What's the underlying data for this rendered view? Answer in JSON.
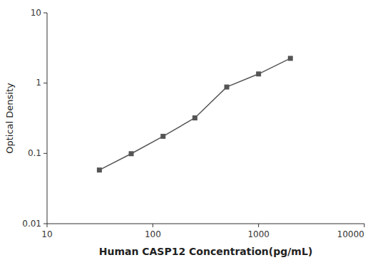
{
  "chart_data": {
    "type": "line",
    "x": [
      31.25,
      62.5,
      125,
      250,
      500,
      1000,
      2000
    ],
    "values": [
      0.058,
      0.099,
      0.175,
      0.32,
      0.88,
      1.35,
      2.25
    ],
    "color": "#555555",
    "marker": "square",
    "xlabel": "Human CASP12 Concentration(pg/mL)",
    "ylabel": "Optical Density",
    "xlim": [
      10,
      10000
    ],
    "ylim": [
      0.01,
      10
    ],
    "xticks": [
      10,
      100,
      1000,
      10000
    ],
    "yticks": [
      0.01,
      0.1,
      1,
      10
    ],
    "log": true,
    "grid": false
  }
}
